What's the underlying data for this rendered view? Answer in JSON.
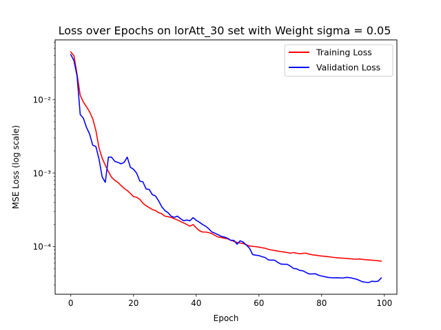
{
  "chart_data": {
    "type": "line",
    "title": "Loss over Epochs on lorAtt_30 set with Weight sigma = 0.05",
    "xlabel": "Epoch",
    "ylabel": "MSE Loss (log scale)",
    "yscale": "log",
    "xlim": [
      -5,
      104
    ],
    "ylim": [
      2.25e-05,
      0.065
    ],
    "x_ticks": [
      0,
      20,
      40,
      60,
      80,
      100
    ],
    "x_tick_labels": [
      "0",
      "20",
      "40",
      "60",
      "80",
      "100"
    ],
    "y_ticks": [
      0.0001,
      0.001,
      0.01
    ],
    "y_tick_labels": [
      "10⁻⁴",
      "10⁻³",
      "10⁻²"
    ],
    "grid": false,
    "legend_position": "top-right",
    "series": [
      {
        "name": "Training Loss",
        "color": "#ff0000",
        "points": [
          [
            0,
            0.0445
          ],
          [
            1,
            0.0395
          ],
          [
            2,
            0.022
          ],
          [
            3,
            0.0115
          ],
          [
            4,
            0.0093
          ],
          [
            5,
            0.008
          ],
          [
            6,
            0.0068
          ],
          [
            7,
            0.0055
          ],
          [
            8,
            0.0038
          ],
          [
            9,
            0.0022
          ],
          [
            10,
            0.0016
          ],
          [
            11,
            0.00128
          ],
          [
            12,
            0.00105
          ],
          [
            13,
            0.00088
          ],
          [
            14,
            0.0008
          ],
          [
            15,
            0.00075
          ],
          [
            16,
            0.00068
          ],
          [
            17,
            0.00062
          ],
          [
            18,
            0.00058
          ],
          [
            19,
            0.00053
          ],
          [
            20,
            0.00048
          ],
          [
            21,
            0.00047
          ],
          [
            22,
            0.00044
          ],
          [
            23,
            0.00039
          ],
          [
            24,
            0.00036
          ],
          [
            25,
            0.00034
          ],
          [
            26,
            0.00032
          ],
          [
            27,
            0.00031
          ],
          [
            28,
            0.00029
          ],
          [
            29,
            0.00028
          ],
          [
            30,
            0.00026
          ],
          [
            31,
            0.000255
          ],
          [
            32,
            0.00025
          ],
          [
            33,
            0.00024
          ],
          [
            34,
            0.00023
          ],
          [
            35,
            0.00022
          ],
          [
            36,
            0.00021
          ],
          [
            37,
            0.0002
          ],
          [
            38,
            0.00019
          ],
          [
            39,
            0.0002
          ],
          [
            40,
            0.00018
          ],
          [
            41,
            0.000165
          ],
          [
            42,
            0.000158
          ],
          [
            43,
            0.000158
          ],
          [
            44,
            0.000155
          ],
          [
            45,
            0.00015
          ],
          [
            46,
            0.000142
          ],
          [
            47,
            0.000135
          ],
          [
            48,
            0.000133
          ],
          [
            49,
            0.00013
          ],
          [
            50,
            0.000128
          ],
          [
            51,
            0.000122
          ],
          [
            52,
            0.000118
          ],
          [
            53,
            0.000114
          ],
          [
            54,
            0.000112
          ],
          [
            55,
            0.00011
          ],
          [
            56,
            0.000106
          ],
          [
            57,
            0.000102
          ],
          [
            58,
            0.000101
          ],
          [
            59,
            0.0001
          ],
          [
            60,
            9.85e-05
          ],
          [
            61,
            9.65e-05
          ],
          [
            62,
            9.5e-05
          ],
          [
            63,
            9.2e-05
          ],
          [
            64,
            9e-05
          ],
          [
            65,
            8.85e-05
          ],
          [
            66,
            8.7e-05
          ],
          [
            67,
            8.55e-05
          ],
          [
            68,
            8.45e-05
          ],
          [
            69,
            8.3e-05
          ],
          [
            70,
            8.15e-05
          ],
          [
            71,
            8.3e-05
          ],
          [
            72,
            8.15e-05
          ],
          [
            73,
            8e-05
          ],
          [
            74,
            8.1e-05
          ],
          [
            75,
            8.15e-05
          ],
          [
            76,
            7.9e-05
          ],
          [
            77,
            7.75e-05
          ],
          [
            78,
            7.65e-05
          ],
          [
            79,
            7.55e-05
          ],
          [
            80,
            7.45e-05
          ],
          [
            81,
            7.38e-05
          ],
          [
            82,
            7.3e-05
          ],
          [
            83,
            7.22e-05
          ],
          [
            84,
            7.12e-05
          ],
          [
            85,
            7.05e-05
          ],
          [
            86,
            7e-05
          ],
          [
            87,
            6.95e-05
          ],
          [
            88,
            6.9e-05
          ],
          [
            89,
            6.85e-05
          ],
          [
            90,
            6.8e-05
          ],
          [
            91,
            6.75e-05
          ],
          [
            92,
            6.8e-05
          ],
          [
            93,
            6.7e-05
          ],
          [
            94,
            6.65e-05
          ],
          [
            95,
            6.6e-05
          ],
          [
            96,
            6.55e-05
          ],
          [
            97,
            6.48e-05
          ],
          [
            98,
            6.42e-05
          ],
          [
            99,
            6.35e-05
          ]
        ]
      },
      {
        "name": "Validation Loss",
        "color": "#0000ff",
        "points": [
          [
            0,
            0.041
          ],
          [
            1,
            0.034
          ],
          [
            2,
            0.021
          ],
          [
            3,
            0.0063
          ],
          [
            4,
            0.0056
          ],
          [
            5,
            0.0042
          ],
          [
            6,
            0.0034
          ],
          [
            7,
            0.0024
          ],
          [
            8,
            0.0023
          ],
          [
            9,
            0.00155
          ],
          [
            10,
            0.00089
          ],
          [
            11,
            0.00075
          ],
          [
            12,
            0.00165
          ],
          [
            13,
            0.00165
          ],
          [
            14,
            0.00145
          ],
          [
            15,
            0.0014
          ],
          [
            16,
            0.00134
          ],
          [
            17,
            0.0014
          ],
          [
            18,
            0.00165
          ],
          [
            19,
            0.0012
          ],
          [
            20,
            0.00113
          ],
          [
            21,
            0.001
          ],
          [
            22,
            0.00078
          ],
          [
            23,
            0.00076
          ],
          [
            24,
            0.00061
          ],
          [
            25,
            0.0006
          ],
          [
            26,
            0.00051
          ],
          [
            27,
            0.00049
          ],
          [
            28,
            0.00042
          ],
          [
            29,
            0.00035
          ],
          [
            30,
            0.00031
          ],
          [
            31,
            0.00029
          ],
          [
            32,
            0.00026
          ],
          [
            33,
            0.00025
          ],
          [
            34,
            0.00026
          ],
          [
            35,
            0.00024
          ],
          [
            36,
            0.000225
          ],
          [
            37,
            0.00023
          ],
          [
            38,
            0.000225
          ],
          [
            39,
            0.000248
          ],
          [
            40,
            0.000228
          ],
          [
            41,
            0.000215
          ],
          [
            42,
            0.0002
          ],
          [
            43,
            0.00019
          ],
          [
            44,
            0.000175
          ],
          [
            45,
            0.000158
          ],
          [
            46,
            0.000152
          ],
          [
            47,
            0.000145
          ],
          [
            48,
            0.000138
          ],
          [
            49,
            0.000135
          ],
          [
            50,
            0.00013
          ],
          [
            51,
            0.000122
          ],
          [
            52,
            0.000122
          ],
          [
            53,
            0.000108
          ],
          [
            54,
            0.00012
          ],
          [
            55,
            0.000115
          ],
          [
            56,
            0.000105
          ],
          [
            57,
            9.5e-05
          ],
          [
            58,
            7.8e-05
          ],
          [
            59,
            7.65e-05
          ],
          [
            60,
            7.55e-05
          ],
          [
            61,
            7.3e-05
          ],
          [
            62,
            7.1e-05
          ],
          [
            63,
            6.6e-05
          ],
          [
            64,
            6.55e-05
          ],
          [
            65,
            6.55e-05
          ],
          [
            66,
            6.1e-05
          ],
          [
            67,
            5.8e-05
          ],
          [
            68,
            5.75e-05
          ],
          [
            69,
            5.75e-05
          ],
          [
            70,
            5.45e-05
          ],
          [
            71,
            5.05e-05
          ],
          [
            72,
            5e-05
          ],
          [
            73,
            4.75e-05
          ],
          [
            74,
            4.7e-05
          ],
          [
            75,
            4.45e-05
          ],
          [
            76,
            4.25e-05
          ],
          [
            77,
            4.25e-05
          ],
          [
            78,
            4.28e-05
          ],
          [
            79,
            4.08e-05
          ],
          [
            80,
            3.98e-05
          ],
          [
            81,
            3.9e-05
          ],
          [
            82,
            3.82e-05
          ],
          [
            83,
            3.78e-05
          ],
          [
            84,
            3.76e-05
          ],
          [
            85,
            3.78e-05
          ],
          [
            86,
            3.75e-05
          ],
          [
            87,
            3.76e-05
          ],
          [
            88,
            3.82e-05
          ],
          [
            89,
            3.78e-05
          ],
          [
            90,
            3.7e-05
          ],
          [
            91,
            3.62e-05
          ],
          [
            92,
            3.48e-05
          ],
          [
            93,
            3.33e-05
          ],
          [
            94,
            3.28e-05
          ],
          [
            95,
            3.25e-05
          ],
          [
            96,
            3.38e-05
          ],
          [
            97,
            3.35e-05
          ],
          [
            98,
            3.38e-05
          ],
          [
            99,
            3.75e-05
          ]
        ]
      }
    ]
  }
}
